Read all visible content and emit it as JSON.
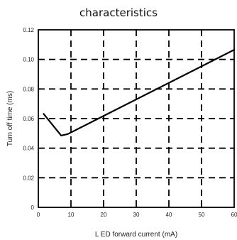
{
  "chart_data": {
    "type": "line",
    "title": "characteristics",
    "xlabel": "L ED forward current (mA)",
    "ylabel": "Turn off time (ms)",
    "xlim": [
      0,
      60
    ],
    "ylim": [
      0,
      0.12
    ],
    "x_ticks": [
      0,
      10,
      20,
      30,
      40,
      50,
      60
    ],
    "x_tick_labels": [
      "0",
      "10",
      "20",
      "30",
      "40",
      "50",
      "60"
    ],
    "y_ticks": [
      0,
      0.02,
      0.04,
      0.06,
      0.08,
      0.1,
      0.12
    ],
    "y_tick_labels": [
      "0",
      "0.02",
      "0.04",
      "0.06",
      "0.08",
      "0.10",
      "0.12"
    ],
    "grid": true,
    "grid_style": "dashed",
    "line_color": "#000000",
    "series": [
      {
        "x": [
          1.5,
          7,
          9,
          60
        ],
        "y": [
          0.0635,
          0.0485,
          0.0495,
          0.1065
        ]
      }
    ]
  }
}
